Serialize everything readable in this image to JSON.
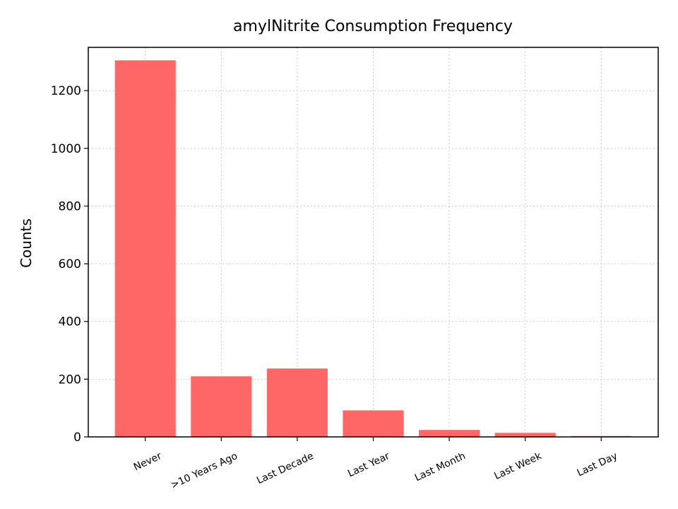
{
  "chart_data": {
    "type": "bar",
    "title": "amylNitrite Consumption Frequency",
    "xlabel": "",
    "ylabel": "Counts",
    "categories": [
      "Never",
      ">10 Years Ago",
      "Last Decade",
      "Last Year",
      "Last Month",
      "Last Week",
      "Last Day"
    ],
    "values": [
      1305,
      210,
      237,
      92,
      24,
      14,
      3
    ],
    "ylim": [
      0,
      1350
    ],
    "yticks": [
      0,
      200,
      400,
      600,
      800,
      1000,
      1200
    ],
    "grid": true,
    "bar_color": "#ff6666",
    "xtick_rotation": "rotated ~25 degrees"
  }
}
